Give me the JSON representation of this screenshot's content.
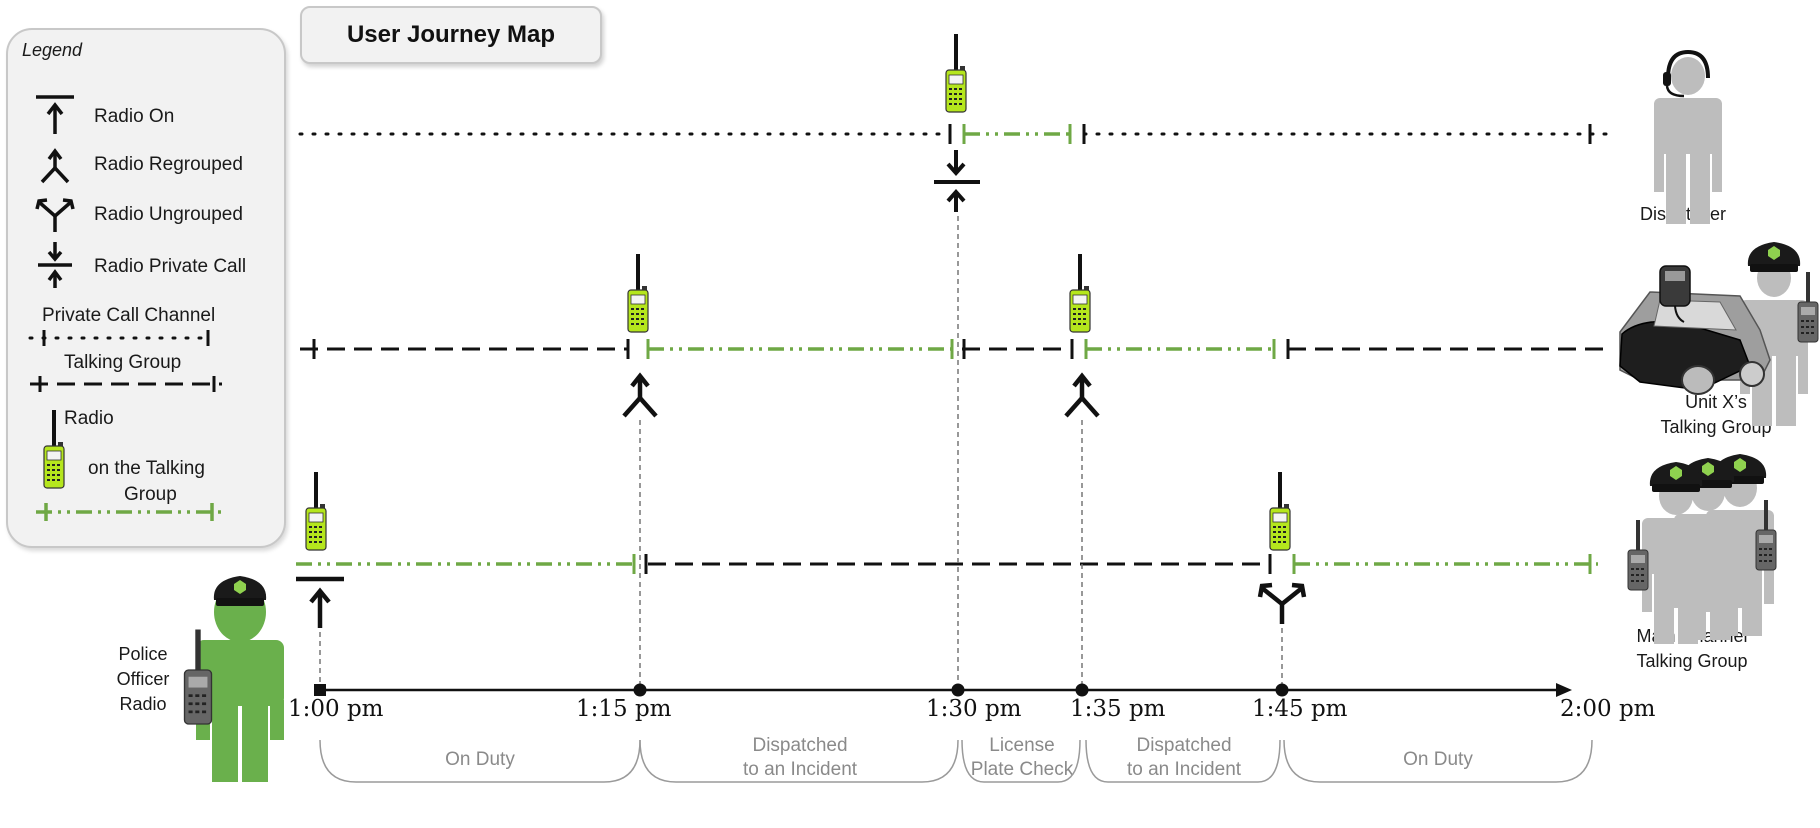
{
  "title": "User Journey Map",
  "legend": {
    "heading": "Legend",
    "radio_on": "Radio On",
    "radio_regrouped": "Radio Regrouped",
    "radio_ungrouped": "Radio Ungrouped",
    "radio_private_call": "Radio Private Call",
    "private_call_channel": "Private Call Channel",
    "talking_group": "Talking Group",
    "radio": "Radio",
    "on_the_talking": "on the Talking",
    "group": "Group"
  },
  "actors": {
    "dispatcher": "Dispatcher",
    "unit_line1": "Unit X’s",
    "unit_line2": "Talking Group",
    "main_line1": "Main Channel",
    "main_line2": "Talking Group",
    "officer_line1": "Police",
    "officer_line2": "Officer",
    "officer_line3": "Radio"
  },
  "times": [
    "1:00  pm",
    "1:15  pm",
    "1:30  pm",
    "1:35  pm",
    "1:45  pm",
    "2:00  pm"
  ],
  "segments": [
    {
      "line1": "On Duty",
      "line2": ""
    },
    {
      "line1": "Dispatched",
      "line2": "to an Incident"
    },
    {
      "line1": "License",
      "line2": "Plate Check"
    },
    {
      "line1": "Dispatched",
      "line2": "to an Incident"
    },
    {
      "line1": "On Duty",
      "line2": ""
    }
  ],
  "colors": {
    "green": "#6fa845",
    "officer_green": "#6ab04c",
    "gray_figure": "#bdbdbd",
    "radio_body": "#b5e61d",
    "black": "#111111"
  }
}
